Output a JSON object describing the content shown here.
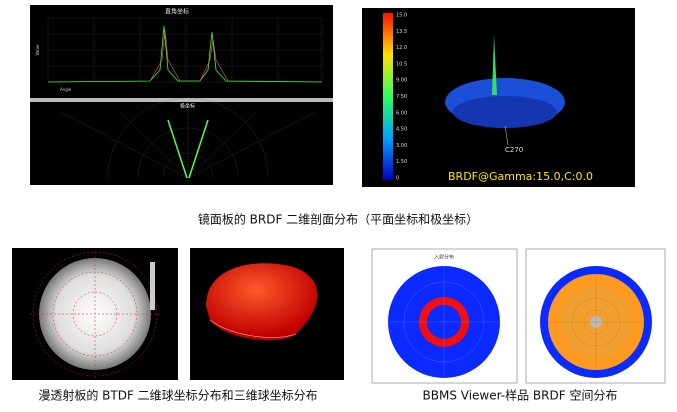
{
  "panels": {
    "cartesian_title": "直角坐标",
    "y_axis_label": "Value",
    "x_axis_label": "Angle",
    "polar_title": "极坐标",
    "colorbar_ticks": [
      "15.0",
      "13.5",
      "12.0",
      "10.5",
      "9.00",
      "7.50",
      "6.00",
      "4.50",
      "3.00",
      "1.50",
      "0"
    ],
    "brdf_label": "BRDF@Gamma:15.0,C:0.0",
    "c_label": "C270",
    "incidence_title": "入射分布"
  },
  "captions": [
    "镜面板的 BRDF 二维剖面分布（平面坐标和极坐标）",
    "漫透射板的 BTDF 二维球坐标分布和三维球坐标分布",
    "BBMS Viewer-样品 BRDF 空间分布"
  ]
}
